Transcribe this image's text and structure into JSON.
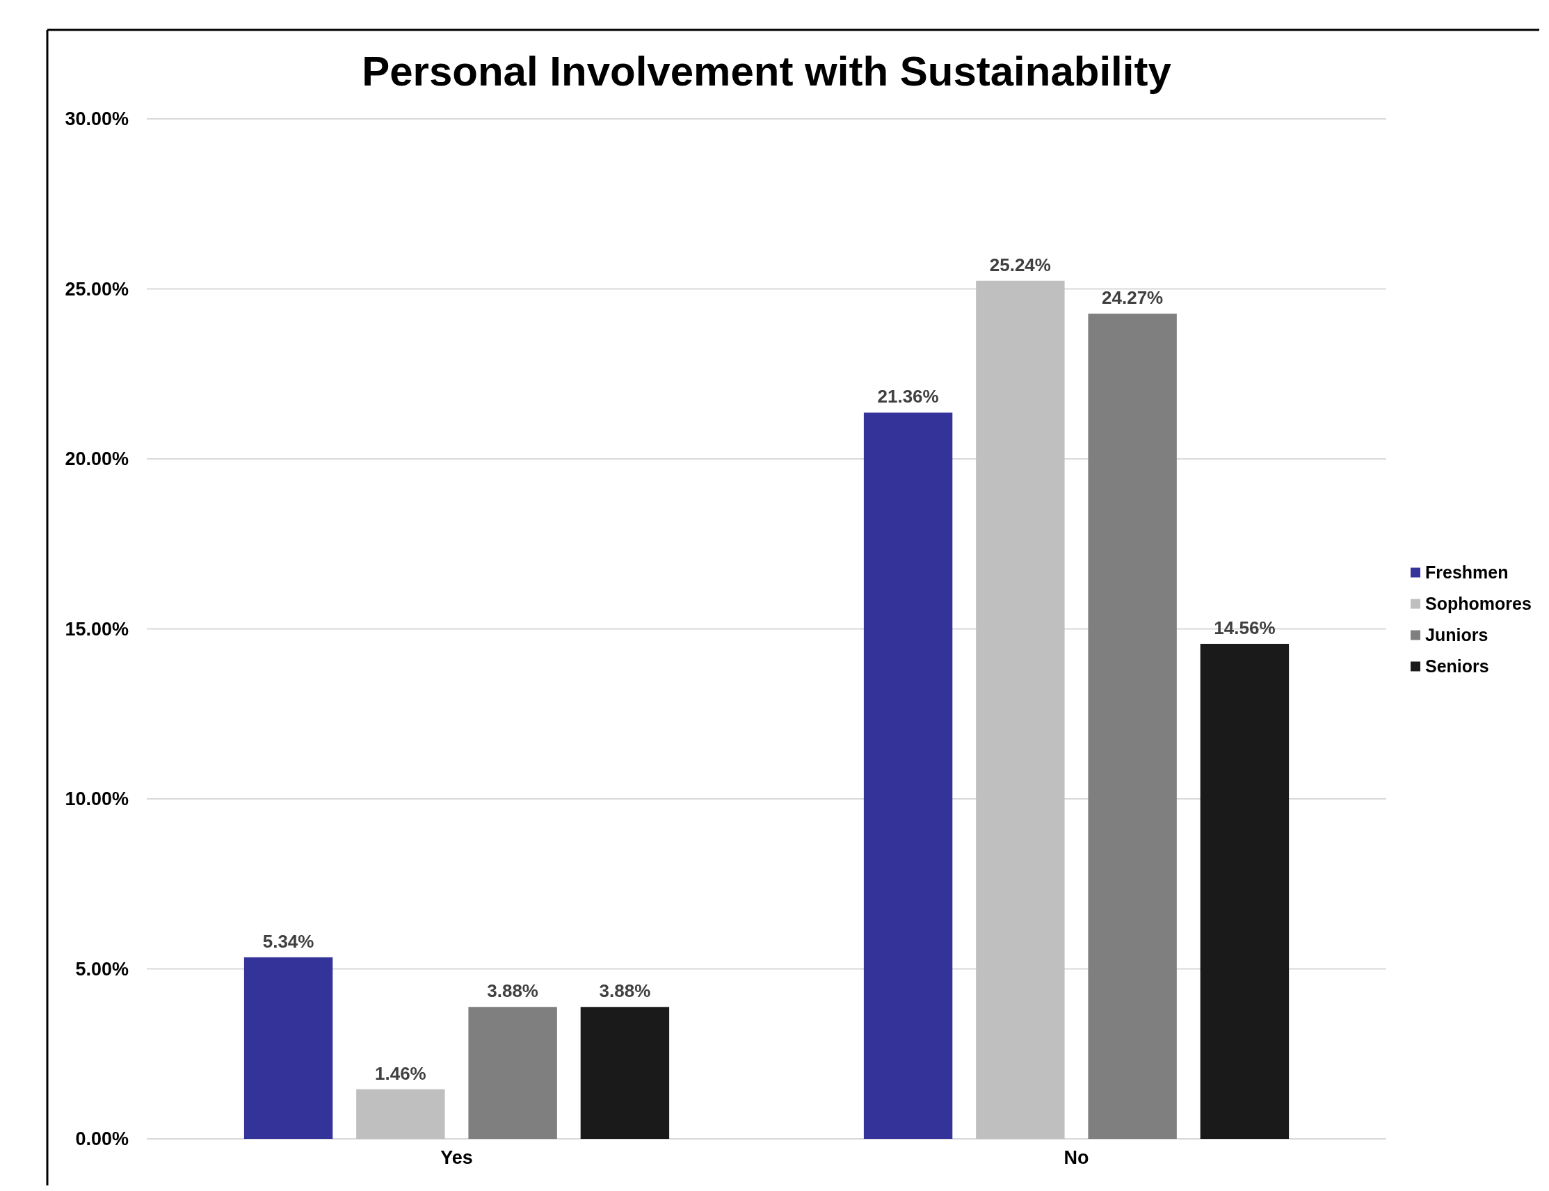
{
  "chart_data": {
    "type": "bar",
    "title": "Personal Involvement with Sustainability",
    "categories": [
      "Yes",
      "No"
    ],
    "series": [
      {
        "name": "Freshmen",
        "color": "#343399",
        "values": [
          5.34,
          21.36
        ],
        "value_labels": [
          "5.34%",
          "21.36%"
        ]
      },
      {
        "name": "Sophomores",
        "color": "#bfbfbf",
        "values": [
          1.46,
          25.24
        ],
        "value_labels": [
          "1.46%",
          "25.24%"
        ]
      },
      {
        "name": "Juniors",
        "color": "#7f7f7f",
        "values": [
          3.88,
          24.27
        ],
        "value_labels": [
          "3.88%",
          "24.27%"
        ]
      },
      {
        "name": "Seniors",
        "color": "#1a1a1a",
        "values": [
          3.88,
          14.56
        ],
        "value_labels": [
          "3.88%",
          "14.56%"
        ]
      }
    ],
    "ylim": [
      0,
      30
    ],
    "yticks": [
      {
        "value": 0,
        "label": "0.00%"
      },
      {
        "value": 5,
        "label": "5.00%"
      },
      {
        "value": 10,
        "label": "10.00%"
      },
      {
        "value": 15,
        "label": "15.00%"
      },
      {
        "value": 20,
        "label": "20.00%"
      },
      {
        "value": 25,
        "label": "25.00%"
      },
      {
        "value": 30,
        "label": "30.00%"
      }
    ],
    "grid": "y",
    "legend": "right"
  }
}
